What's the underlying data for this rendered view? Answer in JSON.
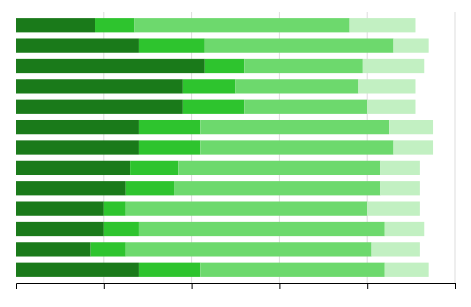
{
  "chart_data": {
    "type": "bar",
    "orientation": "horizontal",
    "stacked": true,
    "categories": [
      null,
      null,
      null,
      null,
      null,
      null,
      null,
      null,
      null,
      null,
      null,
      null,
      null
    ],
    "series": [
      {
        "color": "#1a7a1a",
        "values": [
          18,
          28,
          43,
          38,
          38,
          28,
          28,
          26,
          25,
          20,
          20,
          17,
          28
        ]
      },
      {
        "color": "#2ec42e",
        "values": [
          9,
          15,
          9,
          12,
          14,
          14,
          14,
          11,
          11,
          5,
          8,
          8,
          14
        ]
      },
      {
        "color": "#6dd96d",
        "values": [
          49,
          43,
          27,
          28,
          28,
          43,
          44,
          46,
          47,
          55,
          56,
          56,
          42
        ]
      },
      {
        "color": "#c2f0c2",
        "values": [
          15,
          8,
          14,
          13,
          11,
          10,
          9,
          9,
          9,
          12,
          9,
          11,
          10
        ]
      }
    ],
    "xlim": [
      0,
      100
    ],
    "xticks": [
      20,
      40,
      60,
      80,
      100
    ],
    "grid": true,
    "tick_labels": false
  }
}
